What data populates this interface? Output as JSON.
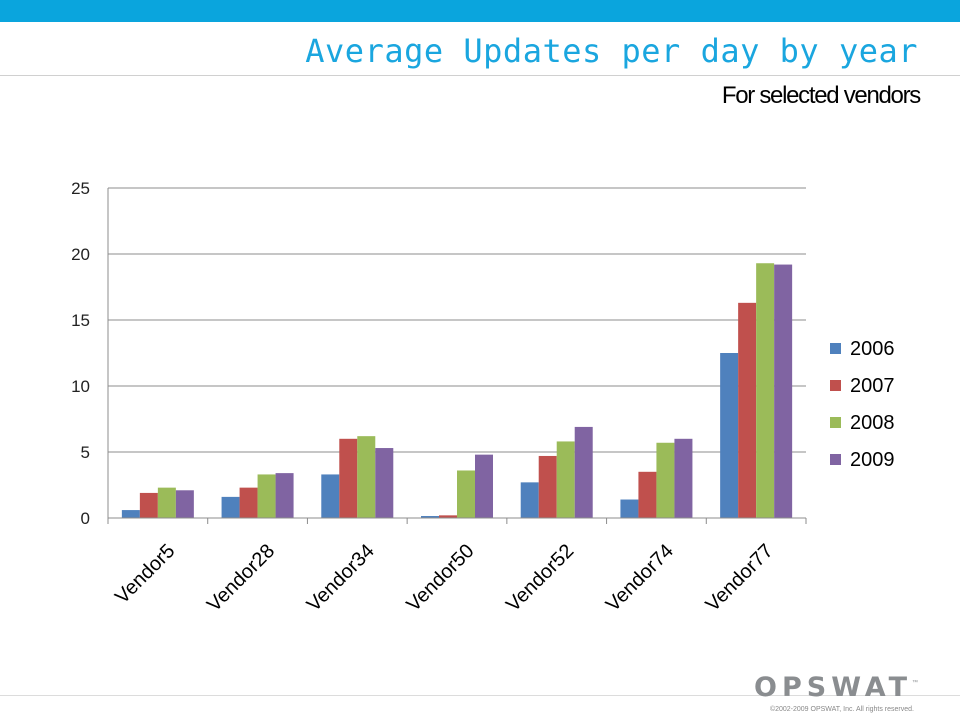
{
  "slide": {
    "title": "Average Updates per day by year",
    "subtitle": "For selected vendors",
    "logo_text": "OPSWAT",
    "logo_mark": "™",
    "copyright": "©2002-2009 OPSWAT, Inc. All rights reserved.",
    "colors": {
      "top_bar": "#0aa5dd",
      "title": "#1aa6df"
    }
  },
  "chart_data": {
    "type": "bar",
    "categories": [
      "Vendor5",
      "Vendor28",
      "Vendor34",
      "Vendor50",
      "Vendor52",
      "Vendor74",
      "Vendor77"
    ],
    "series": [
      {
        "name": "2006",
        "color": "#4f81bd",
        "values": [
          0.6,
          1.6,
          3.3,
          0.15,
          2.7,
          1.4,
          12.5
        ]
      },
      {
        "name": "2007",
        "color": "#c0504d",
        "values": [
          1.9,
          2.3,
          6.0,
          0.2,
          4.7,
          3.5,
          16.3
        ]
      },
      {
        "name": "2008",
        "color": "#9bbb59",
        "values": [
          2.3,
          3.3,
          6.2,
          3.6,
          5.8,
          5.7,
          19.3
        ]
      },
      {
        "name": "2009",
        "color": "#8064a2",
        "values": [
          2.1,
          3.4,
          5.3,
          4.8,
          6.9,
          6.0,
          19.2
        ]
      }
    ],
    "yticks": [
      0,
      5,
      10,
      15,
      20,
      25
    ],
    "ylim": [
      0,
      25
    ],
    "grid": true,
    "legend": "right"
  }
}
